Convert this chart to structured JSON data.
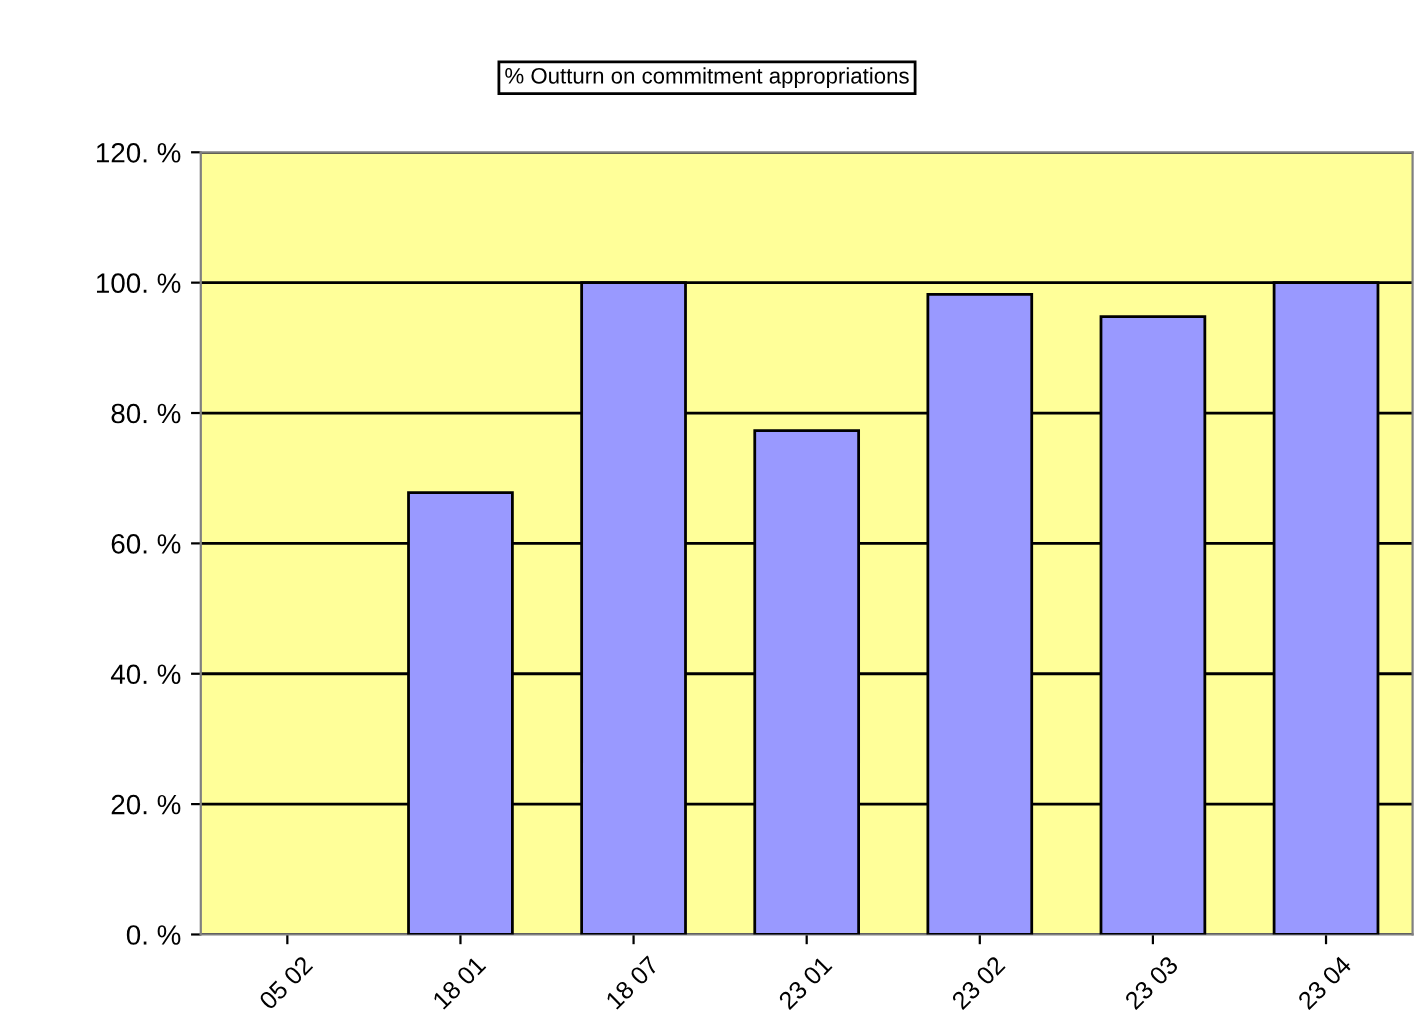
{
  "chart_data": {
    "type": "bar",
    "title": "% Outturn on commitment appropriations",
    "categories": [
      "05 02",
      "18 01",
      "18 07",
      "23 01",
      "23 02",
      "23 03",
      "23 04"
    ],
    "values": [
      null,
      67.8,
      100,
      77.3,
      98.2,
      94.8,
      100
    ],
    "color": "#9999ff",
    "ylim": [
      0,
      120
    ],
    "yticks": [
      {
        "value": 0,
        "label": "0. %"
      },
      {
        "value": 20,
        "label": "20. %"
      },
      {
        "value": 40,
        "label": "40. %"
      },
      {
        "value": 60,
        "label": "60. %"
      },
      {
        "value": 80,
        "label": "80. %"
      },
      {
        "value": 100,
        "label": "100. %"
      },
      {
        "value": 120,
        "label": "120. %"
      }
    ],
    "grid": "y"
  }
}
